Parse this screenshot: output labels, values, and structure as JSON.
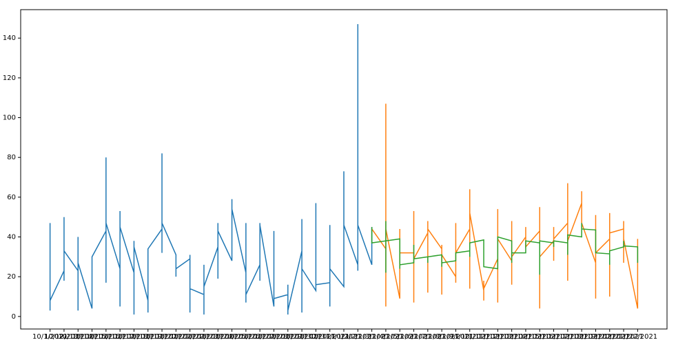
{
  "chart_data": {
    "type": "line",
    "categories": [
      "10/1/2021",
      "10/12/2021",
      "10/13/2021",
      "10/14/2021",
      "10/15/2021",
      "10/16/2021",
      "10/17/2021",
      "10/18/2021",
      "10/19/2021",
      "10/20/2021",
      "10/21/2021",
      "10/22/2021",
      "10/23/2021",
      "10/24/2021",
      "10/25/2021",
      "10/26/2021",
      "10/27/2021",
      "10/28/2021",
      "10/29/2021",
      "10/30/2021",
      "10/31/2021",
      "11/1/2021",
      "11/2/2021",
      "11/3/2021",
      "11/4/2021",
      "11/5/2021",
      "11/6/2021",
      "11/7/2021",
      "11/8/2021",
      "11/9/2021",
      "11/10/2021",
      "11/11/2021",
      "11/12/2021",
      "11/13/2021",
      "11/14/2021",
      "11/15/2021",
      "11/16/2021",
      "11/17/2021",
      "11/18/2021",
      "11/19/2021",
      "11/20/2021",
      "11/21/2021",
      "11/22/2021"
    ],
    "series": [
      {
        "color": "#1f77b4",
        "x": [
          "10/1/2021",
          "10/1/2021",
          "10/1/2021",
          "10/12/2021",
          "10/12/2021",
          "10/12/2021",
          "10/12/2021",
          "10/13/2021",
          "10/13/2021",
          "10/13/2021",
          "10/13/2021",
          "10/14/2021",
          "10/14/2021",
          "10/15/2021",
          "10/15/2021",
          "10/15/2021",
          "10/15/2021",
          "10/16/2021",
          "10/16/2021",
          "10/16/2021",
          "10/16/2021",
          "10/17/2021",
          "10/17/2021",
          "10/17/2021",
          "10/17/2021",
          "10/18/2021",
          "10/18/2021",
          "10/18/2021",
          "10/19/2021",
          "10/19/2021",
          "10/19/2021",
          "10/19/2021",
          "10/20/2021",
          "10/20/2021",
          "10/20/2021",
          "10/21/2021",
          "10/21/2021",
          "10/21/2021",
          "10/21/2021",
          "10/22/2021",
          "10/22/2021",
          "10/22/2021",
          "10/22/2021",
          "10/23/2021",
          "10/23/2021",
          "10/23/2021",
          "10/23/2021",
          "10/24/2021",
          "10/24/2021",
          "10/24/2021",
          "10/25/2021",
          "10/25/2021",
          "10/25/2021",
          "10/25/2021",
          "10/26/2021",
          "10/26/2021",
          "10/26/2021",
          "10/26/2021",
          "10/27/2021",
          "10/27/2021",
          "10/27/2021",
          "10/28/2021",
          "10/28/2021",
          "10/28/2021",
          "10/28/2021",
          "10/29/2021",
          "10/29/2021",
          "10/29/2021",
          "10/29/2021",
          "10/30/2021",
          "10/30/2021",
          "10/30/2021",
          "10/31/2021",
          "10/31/2021",
          "10/31/2021",
          "10/31/2021",
          "11/1/2021",
          "11/1/2021",
          "11/1/2021",
          "11/2/2021",
          "11/2/2021",
          "11/2/2021",
          "11/2/2021",
          "11/3/2021",
          "11/3/2021",
          "11/3/2021"
        ],
        "values": [
          47,
          3,
          8,
          23,
          50,
          18,
          33,
          23,
          40,
          3,
          27,
          4,
          30,
          43,
          80,
          17,
          47,
          24,
          53,
          5,
          45,
          22,
          38,
          1,
          35,
          8,
          2,
          34,
          44,
          82,
          32,
          47,
          31,
          20,
          24,
          29,
          31,
          2,
          14,
          11,
          26,
          1,
          15,
          35,
          47,
          19,
          43,
          28,
          59,
          54,
          22,
          47,
          7,
          11,
          26,
          47,
          18,
          46,
          5,
          43,
          9,
          11,
          16,
          1,
          3,
          33,
          49,
          2,
          24,
          13,
          57,
          16,
          17,
          46,
          5,
          24,
          15,
          73,
          46,
          26,
          147,
          23,
          46,
          26,
          45,
          33
        ]
      },
      {
        "color": "#ff7f0e",
        "x": [
          "11/3/2021",
          "11/4/2021",
          "11/4/2021",
          "11/4/2021",
          "11/4/2021",
          "11/5/2021",
          "11/5/2021",
          "11/5/2021",
          "11/6/2021",
          "11/6/2021",
          "11/6/2021",
          "11/6/2021",
          "11/7/2021",
          "11/7/2021",
          "11/7/2021",
          "11/7/2021",
          "11/8/2021",
          "11/8/2021",
          "11/8/2021",
          "11/8/2021",
          "11/9/2021",
          "11/9/2021",
          "11/9/2021",
          "11/9/2021",
          "11/10/2021",
          "11/10/2021",
          "11/10/2021",
          "11/10/2021",
          "11/11/2021",
          "11/11/2021",
          "11/11/2021",
          "11/11/2021",
          "11/12/2021",
          "11/12/2021",
          "11/12/2021",
          "11/12/2021",
          "11/13/2021",
          "11/13/2021",
          "11/13/2021",
          "11/13/2021",
          "11/14/2021",
          "11/14/2021",
          "11/14/2021",
          "11/15/2021",
          "11/15/2021",
          "11/15/2021",
          "11/15/2021",
          "11/16/2021",
          "11/16/2021",
          "11/16/2021",
          "11/16/2021",
          "11/17/2021",
          "11/17/2021",
          "11/17/2021",
          "11/17/2021",
          "11/18/2021",
          "11/18/2021",
          "11/18/2021",
          "11/19/2021",
          "11/19/2021",
          "11/19/2021",
          "11/19/2021",
          "11/20/2021",
          "11/20/2021",
          "11/20/2021",
          "11/20/2021",
          "11/21/2021",
          "11/21/2021",
          "11/21/2021",
          "11/21/2021",
          "11/22/2021",
          "11/22/2021"
        ],
        "values": [
          44,
          34,
          107,
          5,
          44,
          9,
          44,
          32,
          32,
          53,
          7,
          29,
          42,
          48,
          12,
          44,
          34,
          36,
          11,
          31,
          20,
          47,
          17,
          32,
          44,
          64,
          14,
          52,
          13,
          18,
          8,
          14,
          29,
          54,
          7,
          39,
          28,
          48,
          16,
          30,
          40,
          45,
          35,
          43,
          55,
          4,
          30,
          38,
          45,
          28,
          39,
          47,
          67,
          18,
          38,
          57,
          63,
          47,
          27,
          51,
          9,
          32,
          39,
          52,
          10,
          42,
          44,
          48,
          27,
          39,
          4,
          39
        ]
      },
      {
        "color": "#2ca02c",
        "x": [
          "11/3/2021",
          "11/3/2021",
          "11/4/2021",
          "11/4/2021",
          "11/4/2021",
          "11/4/2021",
          "11/5/2021",
          "11/5/2021",
          "11/5/2021",
          "11/6/2021",
          "11/6/2021",
          "11/6/2021",
          "11/7/2021",
          "11/7/2021",
          "11/7/2021",
          "11/8/2021",
          "11/8/2021",
          "11/8/2021",
          "11/9/2021",
          "11/9/2021",
          "11/10/2021",
          "11/10/2021",
          "11/10/2021",
          "11/11/2021",
          "11/11/2021",
          "11/12/2021",
          "11/12/2021",
          "11/13/2021",
          "11/13/2021",
          "11/13/2021",
          "11/14/2021",
          "11/14/2021",
          "11/15/2021",
          "11/15/2021",
          "11/15/2021",
          "11/16/2021",
          "11/16/2021",
          "11/16/2021",
          "11/17/2021",
          "11/17/2021",
          "11/17/2021",
          "11/18/2021",
          "11/18/2021",
          "11/18/2021",
          "11/19/2021",
          "11/19/2021",
          "11/20/2021",
          "11/20/2021",
          "11/20/2021",
          "11/21/2021",
          "11/21/2021",
          "11/21/2021",
          "11/22/2021",
          "11/22/2021"
        ],
        "values": [
          45,
          37,
          38,
          22,
          48,
          38,
          39,
          24,
          26,
          27,
          36,
          29,
          30,
          27,
          30,
          31,
          25,
          27,
          28,
          32,
          33,
          30,
          37,
          38.5,
          25,
          24,
          40,
          38,
          27,
          32,
          32,
          38,
          37,
          21,
          38,
          37,
          35,
          38,
          37,
          31,
          41,
          40,
          47,
          44,
          43.5,
          32,
          31.5,
          26,
          33,
          35,
          38,
          35.5,
          35,
          27
        ]
      }
    ],
    "ylim": [
      -6.3,
      154.3
    ],
    "yticks": [
      0,
      20,
      40,
      60,
      80,
      100,
      120,
      140
    ]
  }
}
